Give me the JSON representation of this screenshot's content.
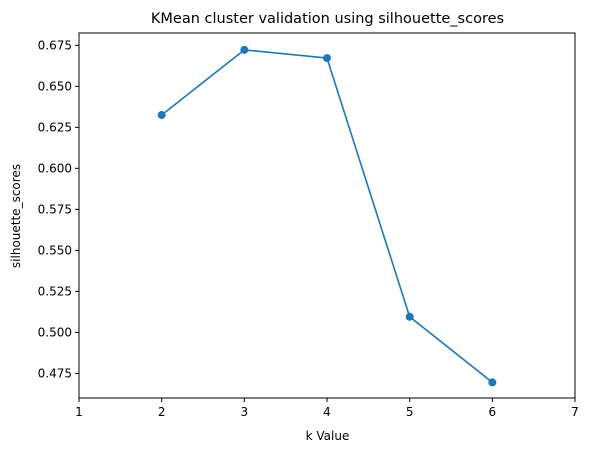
{
  "chart_data": {
    "type": "line",
    "title": "KMean cluster validation using silhouette_scores",
    "xlabel": "k Value",
    "ylabel": "silhouette_scores",
    "x": [
      2,
      3,
      4,
      5,
      6
    ],
    "series": [
      {
        "values": [
          0.6325,
          0.6722,
          0.6672,
          0.5095,
          0.4695
        ],
        "color": "#1f77b4",
        "marker": "circle"
      }
    ],
    "xlim": [
      1,
      7
    ],
    "ylim": [
      0.46,
      0.6825
    ],
    "xticks": [
      "1",
      "2",
      "3",
      "4",
      "5",
      "6",
      "7"
    ],
    "xtick_values": [
      1,
      2,
      3,
      4,
      5,
      6,
      7
    ],
    "yticks": [
      "0.475",
      "0.500",
      "0.525",
      "0.550",
      "0.575",
      "0.600",
      "0.625",
      "0.650",
      "0.675"
    ],
    "ytick_values": [
      0.475,
      0.5,
      0.525,
      0.55,
      0.575,
      0.6,
      0.625,
      0.65,
      0.675
    ],
    "grid": false,
    "legend": "none"
  }
}
